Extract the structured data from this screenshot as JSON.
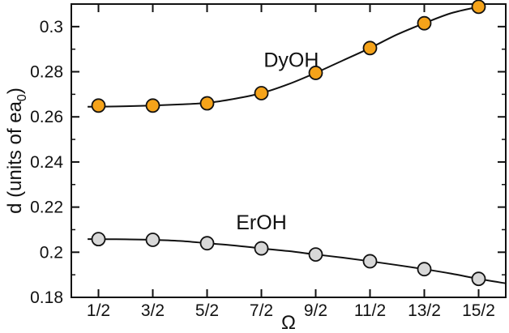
{
  "chart_data": {
    "type": "scatter",
    "title": "",
    "xlabel": "Ω",
    "ylabel": "d (units of ea",
    "ylabel_subscript": "0",
    "ylabel_close": ")",
    "categories": [
      "1/2",
      "3/2",
      "5/2",
      "7/2",
      "9/2",
      "11/2",
      "13/2",
      "15/2"
    ],
    "x": [
      0.5,
      1.5,
      2.5,
      3.5,
      4.5,
      5.5,
      6.5,
      7.5
    ],
    "xlim": [
      0.0,
      8.0
    ],
    "ylim": [
      0.18,
      0.31
    ],
    "yticks": [
      0.18,
      0.2,
      0.22,
      0.24,
      0.26,
      0.28,
      0.3
    ],
    "ytick_labels": [
      "0.18",
      "0.2",
      "0.22",
      "0.24",
      "0.26",
      "0.28",
      "0.3"
    ],
    "grid": false,
    "series": [
      {
        "name": "DyOH",
        "color": "#f5a31a",
        "values": [
          0.265,
          0.265,
          0.266,
          0.2705,
          0.2795,
          0.2905,
          0.3015,
          0.3088
        ],
        "curve_x": [
          0.3,
          0.5,
          1.0,
          1.5,
          2.0,
          2.5,
          3.0,
          3.5,
          4.0,
          4.5,
          5.0,
          5.5,
          6.0,
          6.5,
          7.0,
          7.5
        ],
        "curve_y": [
          0.2645,
          0.2645,
          0.2647,
          0.265,
          0.2655,
          0.2662,
          0.268,
          0.2705,
          0.2745,
          0.2795,
          0.285,
          0.2905,
          0.2965,
          0.3015,
          0.306,
          0.3088
        ]
      },
      {
        "name": "ErOH",
        "color": "#d8d8d8",
        "values": [
          0.2058,
          0.2055,
          0.204,
          0.2017,
          0.199,
          0.196,
          0.1925,
          0.1882
        ],
        "curve_x": [
          0.3,
          0.5,
          1.0,
          1.5,
          2.0,
          2.5,
          3.0,
          3.5,
          4.0,
          4.5,
          5.0,
          5.5,
          6.0,
          6.5,
          7.0,
          7.5,
          8.0
        ],
        "curve_y": [
          0.2058,
          0.2058,
          0.2057,
          0.2055,
          0.205,
          0.204,
          0.203,
          0.2017,
          0.2005,
          0.199,
          0.1976,
          0.196,
          0.1943,
          0.1925,
          0.1905,
          0.1882,
          0.1862
        ]
      }
    ]
  }
}
